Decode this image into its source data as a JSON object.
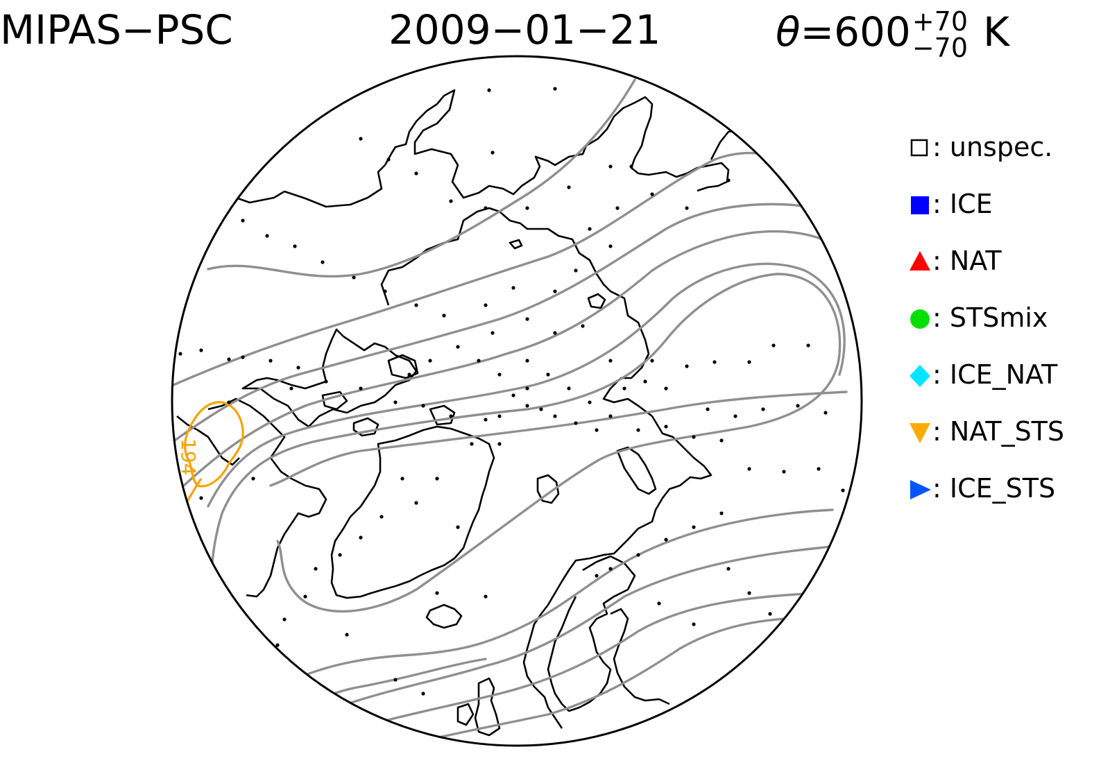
{
  "header": {
    "instrument": "MIPAS−PSC",
    "date": "2009−01−21",
    "theta": {
      "symbol": "θ",
      "equals": "=600",
      "plus": "+70",
      "minus": "−70",
      "unit": "K"
    }
  },
  "legend": {
    "items": [
      {
        "shape": "open-square",
        "color": "#000000",
        "label": ": unspec."
      },
      {
        "shape": "filled-square",
        "color": "#0000ff",
        "label": ": ICE"
      },
      {
        "shape": "triangle-up",
        "color": "#ff0000",
        "label": ": NAT"
      },
      {
        "shape": "circle",
        "color": "#00e000",
        "label": ": STSmix"
      },
      {
        "shape": "diamond",
        "color": "#00e5ff",
        "label": ": ICE_NAT"
      },
      {
        "shape": "triangle-down",
        "color": "#ffaa00",
        "label": ": NAT_STS"
      },
      {
        "shape": "triangle-right",
        "color": "#0055ff",
        "label": ": ICE_STS"
      }
    ]
  },
  "map": {
    "projection": "north-polar-stereographic",
    "coastline_color": "#000000",
    "contour_color": "#909090",
    "psc_contour": {
      "label": "194",
      "color": "#f5a300"
    }
  }
}
